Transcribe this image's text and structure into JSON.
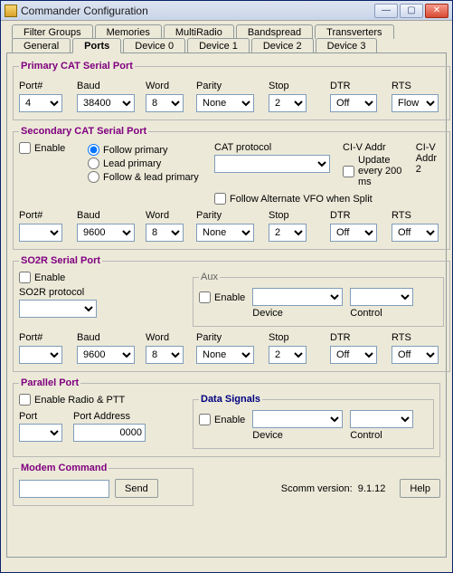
{
  "window": {
    "title": "Commander Configuration"
  },
  "tabs_row1": [
    "Filter Groups",
    "Memories",
    "MultiRadio",
    "Bandspread",
    "Transverters"
  ],
  "tabs_row2": [
    "General",
    "Ports",
    "Device 0",
    "Device 1",
    "Device 2",
    "Device 3"
  ],
  "active_tab": "Ports",
  "primary": {
    "legend": "Primary CAT Serial Port",
    "labels": {
      "port": "Port#",
      "baud": "Baud",
      "word": "Word",
      "parity": "Parity",
      "stop": "Stop",
      "dtr": "DTR",
      "rts": "RTS"
    },
    "values": {
      "port": "4",
      "baud": "38400",
      "word": "8",
      "parity": "None",
      "stop": "2",
      "dtr": "Off",
      "rts": "Flow"
    }
  },
  "secondary": {
    "legend": "Secondary CAT Serial Port",
    "enable_label": "Enable",
    "radio": {
      "follow": "Follow primary",
      "lead": "Lead primary",
      "both": "Follow & lead primary",
      "selected": "follow"
    },
    "cat_protocol_label": "CAT protocol",
    "civ_addr_label": "CI-V Addr",
    "civ_addr2_label": "CI-V Addr 2",
    "update_label": "Update every 200 ms",
    "follow_vfo_label": "Follow Alternate VFO when Split",
    "labels": {
      "port": "Port#",
      "baud": "Baud",
      "word": "Word",
      "parity": "Parity",
      "stop": "Stop",
      "dtr": "DTR",
      "rts": "RTS"
    },
    "values": {
      "port": "",
      "baud": "9600",
      "word": "8",
      "parity": "None",
      "stop": "2",
      "dtr": "Off",
      "rts": "Off"
    }
  },
  "so2r": {
    "legend": "SO2R Serial Port",
    "enable_label": "Enable",
    "protocol_label": "SO2R protocol",
    "protocol_value": "",
    "aux": {
      "legend": "Aux",
      "enable_label": "Enable",
      "device_label": "Device",
      "control_label": "Control"
    },
    "labels": {
      "port": "Port#",
      "baud": "Baud",
      "word": "Word",
      "parity": "Parity",
      "stop": "Stop",
      "dtr": "DTR",
      "rts": "RTS"
    },
    "values": {
      "port": "",
      "baud": "9600",
      "word": "8",
      "parity": "None",
      "stop": "2",
      "dtr": "Off",
      "rts": "Off"
    }
  },
  "parallel": {
    "legend": "Parallel Port",
    "enable_label": "Enable Radio & PTT",
    "port_label": "Port",
    "port_addr_label": "Port Address",
    "port_addr_value": "0000",
    "datasignals": {
      "legend": "Data Signals",
      "enable_label": "Enable",
      "device_label": "Device",
      "control_label": "Control"
    }
  },
  "modem": {
    "legend": "Modem Command",
    "send_label": "Send"
  },
  "footer": {
    "scomm_label": "Scomm version:",
    "scomm_value": "9.1.12",
    "help_label": "Help"
  }
}
